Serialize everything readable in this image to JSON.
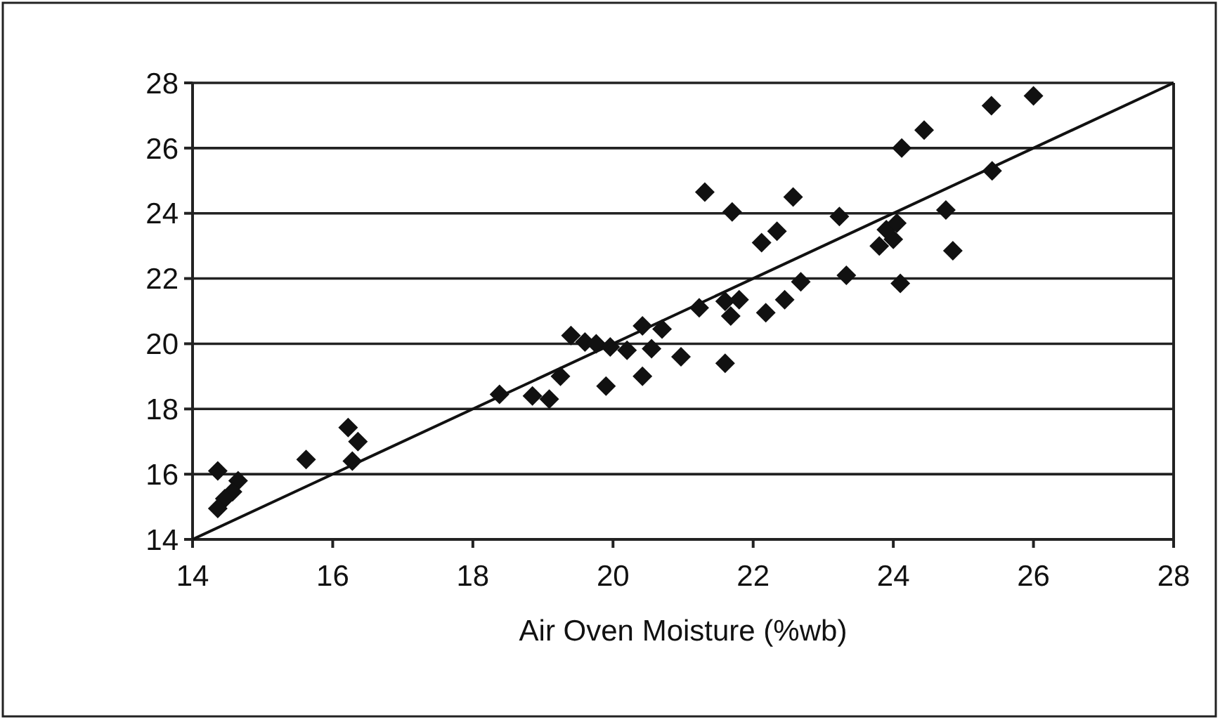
{
  "chart_data": {
    "type": "scatter",
    "xlabel": "Air Oven Moisture (%wb)",
    "xlim": [
      14,
      28
    ],
    "xticks": [
      14,
      16,
      18,
      20,
      22,
      24,
      26,
      28
    ],
    "ylim": [
      14,
      28
    ],
    "yticks": [
      14,
      16,
      18,
      20,
      22,
      24,
      26,
      28
    ],
    "grid": "y",
    "marker": "diamond",
    "series": [
      {
        "color": "#111111",
        "x": [
          14.36,
          14.65,
          14.57,
          14.46,
          14.36,
          15.62,
          16.22,
          16.36,
          16.28,
          18.38,
          18.85,
          19.09,
          19.25,
          19.4,
          19.6,
          19.76,
          19.96,
          20.2,
          19.9,
          20.42,
          20.7,
          20.55,
          20.42,
          20.97,
          21.23,
          21.6,
          21.8,
          21.68,
          21.6,
          22.18,
          22.45,
          22.68,
          23.33,
          24.44,
          24.12,
          21.31,
          22.57,
          21.7,
          23.23,
          25.41,
          24.75,
          24.85,
          22.12,
          22.34,
          23.8,
          24.0,
          23.9,
          24.05,
          24.1,
          25.4,
          26.0
        ],
        "values": [
          16.1,
          15.8,
          15.46,
          15.25,
          14.95,
          16.45,
          17.43,
          17.0,
          16.4,
          18.45,
          18.4,
          18.3,
          19.0,
          20.25,
          20.05,
          20.0,
          19.9,
          19.8,
          18.7,
          20.55,
          20.45,
          19.85,
          19.0,
          19.6,
          21.1,
          21.3,
          21.35,
          20.85,
          19.4,
          20.95,
          21.35,
          21.9,
          22.1,
          26.55,
          26.0,
          24.65,
          24.5,
          24.04,
          23.9,
          25.3,
          24.1,
          22.85,
          23.1,
          23.45,
          23.0,
          23.2,
          23.5,
          23.7,
          21.85,
          27.3,
          27.6
        ]
      },
      {
        "type": "line",
        "color": "#111111",
        "marker": "none",
        "x": [
          14,
          28
        ],
        "values": [
          14,
          28
        ]
      }
    ]
  }
}
